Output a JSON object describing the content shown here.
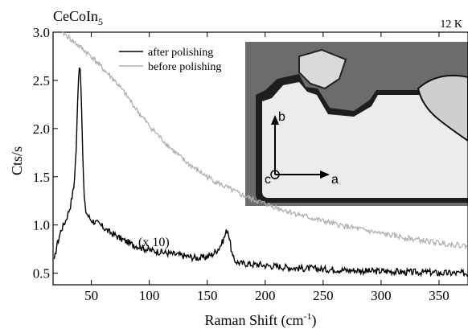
{
  "chart_data": {
    "type": "line",
    "title": "CeCoIn",
    "title_sub": "5",
    "temperature": "12 K",
    "xlabel": "Raman Shift (cm",
    "xlabel_sup": "-1",
    "xlabel_close": ")",
    "ylabel": "Cts/s",
    "xlim": [
      17,
      375
    ],
    "ylim": [
      0.38,
      3.0
    ],
    "xticks": [
      50,
      100,
      150,
      200,
      250,
      300,
      350
    ],
    "yticks": [
      0.5,
      1.0,
      1.5,
      2.0,
      2.5,
      3.0
    ],
    "ytick_labels": [
      "0.5",
      "1.0",
      "1.5",
      "2.0",
      "2.5",
      "3.0"
    ],
    "annotation": "(x 10)",
    "inset_axes": {
      "b": "b",
      "a": "a",
      "c": "c"
    },
    "series": [
      {
        "name": "after polishing",
        "color": "#000000",
        "x": [
          18,
          20,
          24,
          28,
          32,
          35,
          37,
          38,
          39,
          40,
          41,
          42,
          43,
          44,
          45,
          47,
          50,
          55,
          60,
          65,
          70,
          75,
          80,
          85,
          90,
          95,
          100,
          105,
          110,
          115,
          120,
          125,
          130,
          135,
          140,
          145,
          150,
          155,
          160,
          163,
          165,
          167,
          168,
          170,
          172,
          175,
          180,
          185,
          190,
          195,
          200,
          210,
          220,
          230,
          240,
          250,
          260,
          270,
          280,
          290,
          300,
          310,
          320,
          330,
          340,
          350,
          360,
          370,
          375
        ],
        "y": [
          0.62,
          0.78,
          0.95,
          1.05,
          1.2,
          1.4,
          1.8,
          2.2,
          2.55,
          2.7,
          2.5,
          2.0,
          1.55,
          1.25,
          1.15,
          1.1,
          1.05,
          1.02,
          0.98,
          0.93,
          0.9,
          0.86,
          0.83,
          0.8,
          0.78,
          0.76,
          0.74,
          0.73,
          0.72,
          0.71,
          0.7,
          0.69,
          0.68,
          0.67,
          0.66,
          0.66,
          0.67,
          0.7,
          0.76,
          0.82,
          0.88,
          0.95,
          0.94,
          0.8,
          0.66,
          0.62,
          0.6,
          0.6,
          0.59,
          0.59,
          0.58,
          0.57,
          0.56,
          0.55,
          0.55,
          0.54,
          0.54,
          0.53,
          0.53,
          0.52,
          0.52,
          0.52,
          0.51,
          0.51,
          0.51,
          0.5,
          0.5,
          0.5,
          0.5
        ]
      },
      {
        "name": "before polishing",
        "color": "#b0b0b0",
        "x": [
          25,
          30,
          40,
          50,
          60,
          70,
          80,
          90,
          100,
          110,
          120,
          130,
          140,
          150,
          160,
          170,
          180,
          190,
          200,
          220,
          240,
          260,
          280,
          300,
          320,
          340,
          360,
          375
        ],
        "y": [
          3.0,
          2.95,
          2.85,
          2.75,
          2.62,
          2.5,
          2.35,
          2.18,
          2.03,
          1.9,
          1.78,
          1.67,
          1.58,
          1.5,
          1.43,
          1.37,
          1.31,
          1.26,
          1.22,
          1.14,
          1.07,
          1.01,
          0.96,
          0.91,
          0.87,
          0.83,
          0.8,
          0.78
        ]
      }
    ]
  }
}
